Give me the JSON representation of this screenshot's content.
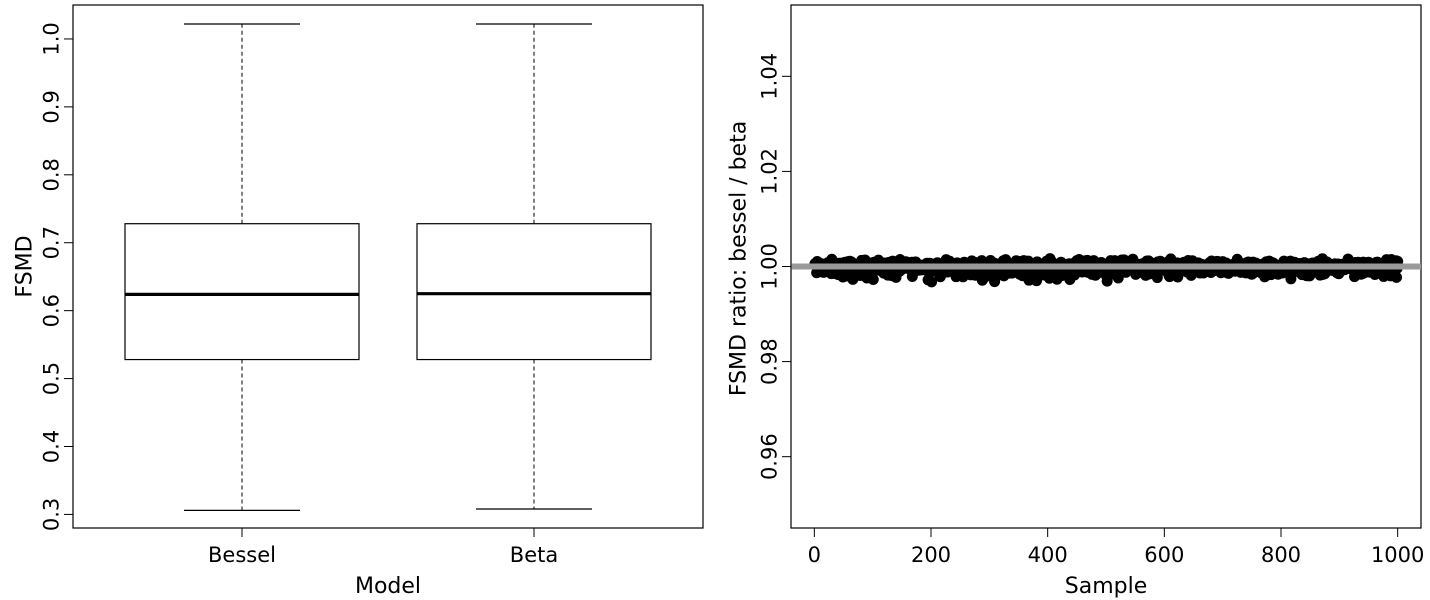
{
  "chart_data": [
    {
      "type": "box",
      "xlabel": "Model",
      "ylabel": "FSMD",
      "ylim": [
        0.28,
        1.05
      ],
      "yticks": [
        0.3,
        0.4,
        0.5,
        0.6,
        0.7,
        0.8,
        0.9,
        1.0
      ],
      "ytick_labels": [
        "0.3",
        "0.4",
        "0.5",
        "0.6",
        "0.7",
        "0.8",
        "0.9",
        "1.0"
      ],
      "categories": [
        "Bessel",
        "Beta"
      ],
      "boxes": [
        {
          "category": "Bessel",
          "min": 0.306,
          "q1": 0.528,
          "median": 0.624,
          "q3": 0.728,
          "max": 1.022
        },
        {
          "category": "Beta",
          "min": 0.308,
          "q1": 0.528,
          "median": 0.625,
          "q3": 0.728,
          "max": 1.022
        }
      ],
      "grid": false
    },
    {
      "type": "scatter",
      "xlabel": "Sample",
      "ylabel": "FSMD ratio:  bessel / beta",
      "xlim": [
        -40,
        1040
      ],
      "ylim": [
        0.945,
        1.055
      ],
      "xticks": [
        0,
        200,
        400,
        600,
        800,
        1000
      ],
      "xtick_labels": [
        "0",
        "200",
        "400",
        "600",
        "800",
        "1000"
      ],
      "yticks": [
        0.96,
        0.98,
        1.0,
        1.02,
        1.04
      ],
      "ytick_labels": [
        "0.96",
        "0.98",
        "1.00",
        "1.02",
        "1.04"
      ],
      "reference_line": {
        "y": 1.0,
        "color": "#999999"
      },
      "series": [
        {
          "n_points": 1000,
          "x_range": [
            1,
            1000
          ],
          "y_center": 1.0,
          "y_range": [
            0.9955,
            1.0023
          ],
          "color": "#000000"
        }
      ],
      "grid": false
    }
  ]
}
